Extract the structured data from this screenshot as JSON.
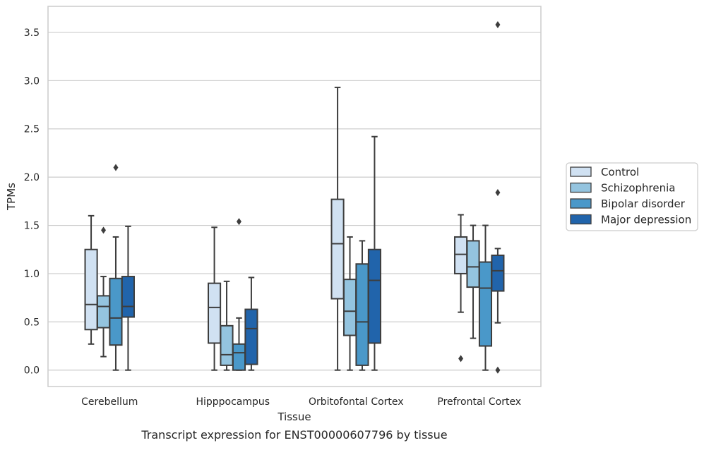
{
  "chart_data": {
    "type": "box",
    "title": "",
    "caption": "Transcript expression for ENST00000607796 by tissue",
    "xlabel": "Tissue",
    "ylabel": "TPMs",
    "ylim": [
      -0.17,
      3.77
    ],
    "yticks": [
      "0.0",
      "0.5",
      "1.0",
      "1.5",
      "2.0",
      "2.5",
      "3.0",
      "3.5"
    ],
    "ytick_values": [
      0.0,
      0.5,
      1.0,
      1.5,
      2.0,
      2.5,
      3.0,
      3.5
    ],
    "grid": true,
    "legend_position": "right",
    "categories": [
      "Cerebellum",
      "Hipppocampus",
      "Orbitofontal Cortex",
      "Prefrontal Cortex"
    ],
    "series": [
      {
        "name": "Control",
        "color": "#d0e1f2",
        "boxes": [
          {
            "whislo": 0.27,
            "q1": 0.42,
            "median": 0.68,
            "q3": 1.25,
            "whishi": 1.6,
            "fliers": []
          },
          {
            "whislo": 0.0,
            "q1": 0.28,
            "median": 0.65,
            "q3": 0.9,
            "whishi": 1.48,
            "fliers": []
          },
          {
            "whislo": 0.0,
            "q1": 0.74,
            "median": 1.31,
            "q3": 1.77,
            "whishi": 2.93,
            "fliers": []
          },
          {
            "whislo": 0.6,
            "q1": 1.0,
            "median": 1.2,
            "q3": 1.38,
            "whishi": 1.61,
            "fliers": [
              0.12
            ]
          }
        ]
      },
      {
        "name": "Schizophrenia",
        "color": "#94c4df",
        "boxes": [
          {
            "whislo": 0.14,
            "q1": 0.44,
            "median": 0.66,
            "q3": 0.77,
            "whishi": 0.97,
            "fliers": [
              1.45
            ]
          },
          {
            "whislo": 0.0,
            "q1": 0.05,
            "median": 0.16,
            "q3": 0.46,
            "whishi": 0.92,
            "fliers": []
          },
          {
            "whislo": 0.0,
            "q1": 0.36,
            "median": 0.61,
            "q3": 0.94,
            "whishi": 1.38,
            "fliers": []
          },
          {
            "whislo": 0.33,
            "q1": 0.86,
            "median": 1.07,
            "q3": 1.34,
            "whishi": 1.5,
            "fliers": []
          }
        ]
      },
      {
        "name": "Bipolar disorder",
        "color": "#4a98c9",
        "boxes": [
          {
            "whislo": 0.0,
            "q1": 0.26,
            "median": 0.54,
            "q3": 0.95,
            "whishi": 1.38,
            "fliers": [
              2.1
            ]
          },
          {
            "whislo": 0.0,
            "q1": 0.0,
            "median": 0.18,
            "q3": 0.27,
            "whishi": 0.54,
            "fliers": [
              1.54
            ]
          },
          {
            "whislo": 0.0,
            "q1": 0.05,
            "median": 0.5,
            "q3": 1.1,
            "whishi": 1.34,
            "fliers": []
          },
          {
            "whislo": 0.0,
            "q1": 0.25,
            "median": 0.85,
            "q3": 1.12,
            "whishi": 1.5,
            "fliers": []
          }
        ]
      },
      {
        "name": "Major depression",
        "color": "#2164ab",
        "boxes": [
          {
            "whislo": 0.0,
            "q1": 0.55,
            "median": 0.66,
            "q3": 0.97,
            "whishi": 1.49,
            "fliers": []
          },
          {
            "whislo": 0.0,
            "q1": 0.06,
            "median": 0.43,
            "q3": 0.63,
            "whishi": 0.96,
            "fliers": []
          },
          {
            "whislo": 0.0,
            "q1": 0.28,
            "median": 0.93,
            "q3": 1.25,
            "whishi": 2.42,
            "fliers": []
          },
          {
            "whislo": 0.49,
            "q1": 0.82,
            "median": 1.03,
            "q3": 1.19,
            "whishi": 1.26,
            "fliers": [
              1.84,
              3.58,
              0.0
            ]
          }
        ]
      }
    ]
  }
}
